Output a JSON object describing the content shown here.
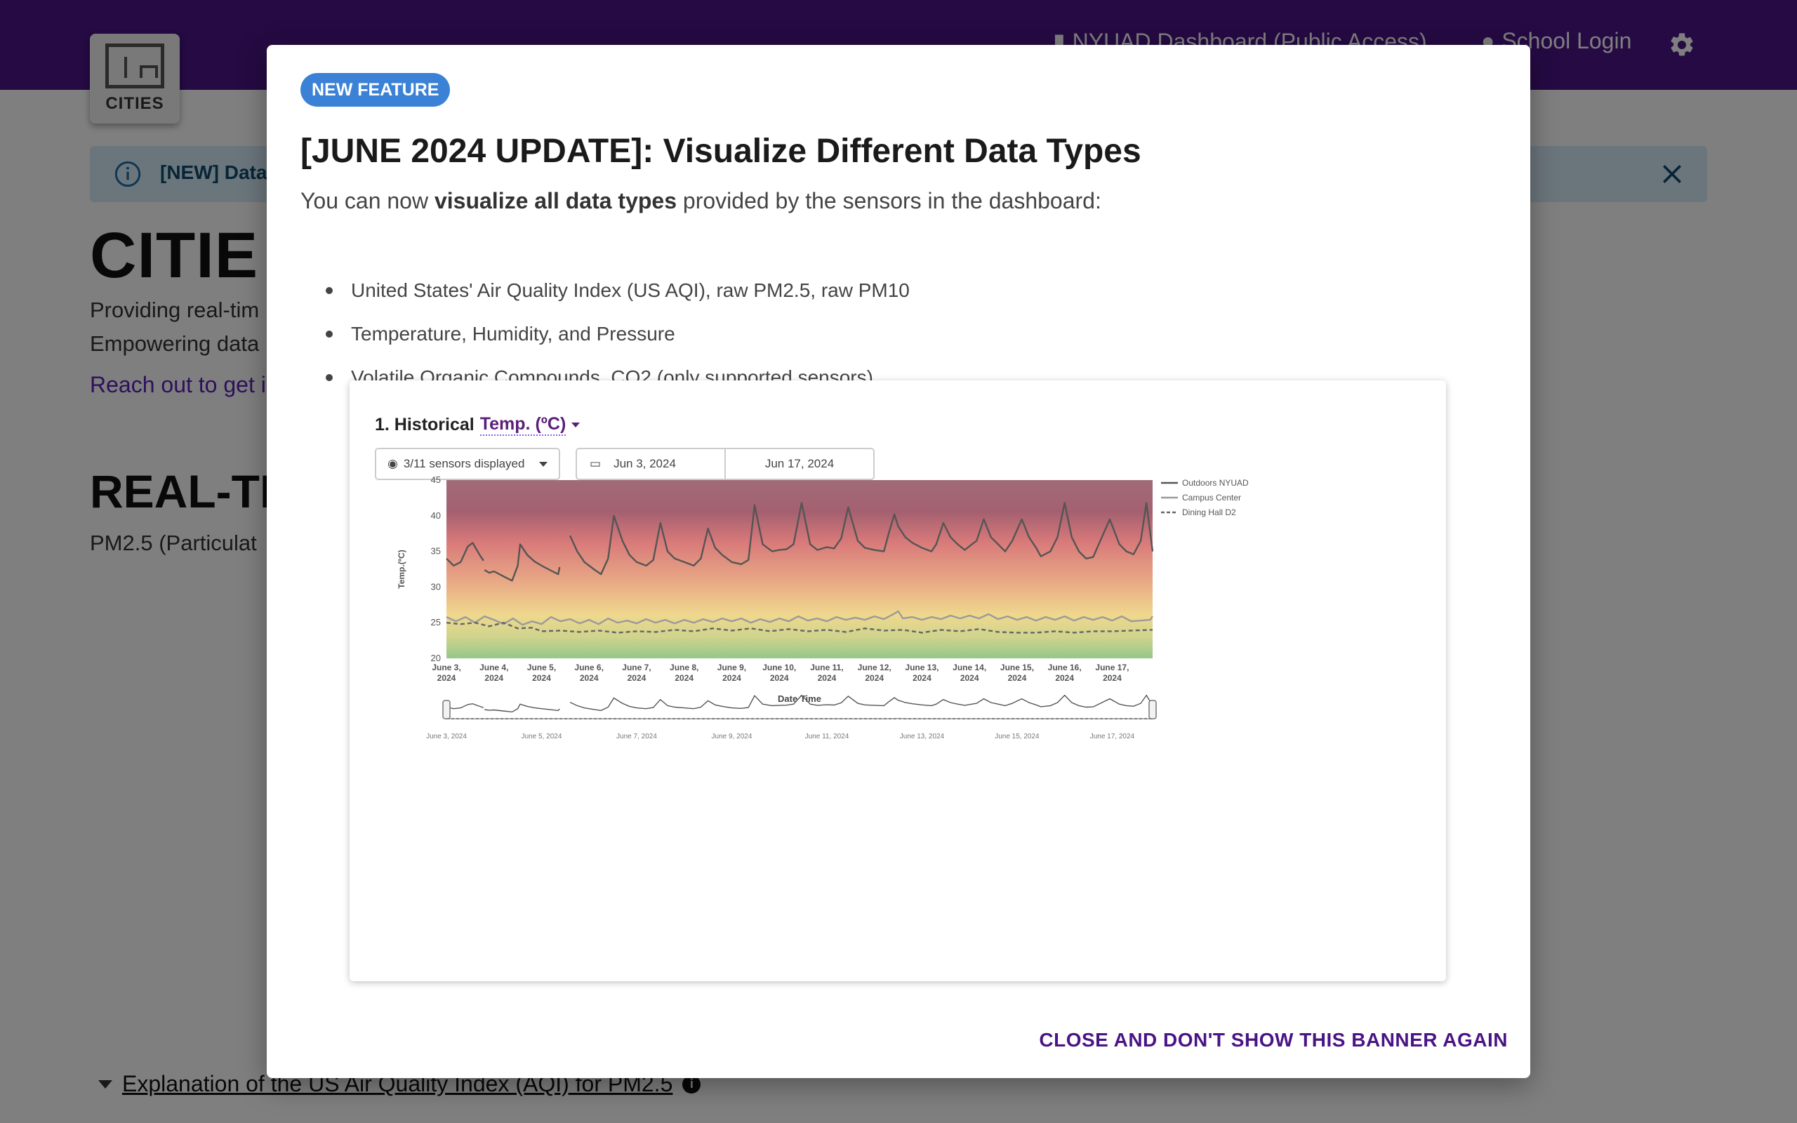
{
  "header": {
    "logo_text": "CITIES",
    "nav_dashboard": "NYUAD Dashboard (Public Access)",
    "nav_login": "School Login",
    "settings_icon": "gear-icon"
  },
  "alert": {
    "text": "[NEW] Data"
  },
  "background": {
    "title": "CITIE",
    "line1": "Providing real-tim",
    "line2": "Empowering data",
    "link": "Reach out to get i",
    "realtime_heading": "REAL-TI",
    "realtime_sub": "PM2.5 (Particulat",
    "explanation": "Explanation of the US Air Quality Index (AQI) for PM2.5"
  },
  "modal": {
    "badge": "NEW FEATURE",
    "title": "[JUNE 2024 UPDATE]: Visualize Different Data Types",
    "intro_pre": "You can now ",
    "intro_bold": "visualize all data types",
    "intro_post": " provided by the sensors in the dashboard:",
    "list": [
      "United States' Air Quality Index (US AQI), raw PM2.5, raw PM10",
      "Temperature, Humidity, and Pressure",
      "Volatile Organic Compounds, CO2 (only supported sensors)"
    ],
    "close_button": "CLOSE AND DON'T SHOW THIS BANNER AGAIN"
  },
  "screenshot": {
    "title_prefix": "1. Historical",
    "metric": "Temp. (ºC)",
    "sensors_select": "3/11 sensors displayed",
    "start_date": "Jun 3, 2024",
    "end_date": "Jun 17, 2024"
  },
  "chart_data": {
    "type": "line",
    "xlabel": "Date Time",
    "ylabel": "Temp.(ºC)",
    "ylim": [
      20,
      45
    ],
    "yticks": [
      20,
      25,
      30,
      35,
      40,
      45
    ],
    "xlim_days": [
      3,
      17.85
    ],
    "x_tick_labels": [
      [
        "June 3,",
        "2024"
      ],
      [
        "June 4,",
        "2024"
      ],
      [
        "June 5,",
        "2024"
      ],
      [
        "June 6,",
        "2024"
      ],
      [
        "June 7,",
        "2024"
      ],
      [
        "June 8,",
        "2024"
      ],
      [
        "June 9,",
        "2024"
      ],
      [
        "June 10,",
        "2024"
      ],
      [
        "June 11,",
        "2024"
      ],
      [
        "June 12,",
        "2024"
      ],
      [
        "June 13,",
        "2024"
      ],
      [
        "June 14,",
        "2024"
      ],
      [
        "June 15,",
        "2024"
      ],
      [
        "June 16,",
        "2024"
      ],
      [
        "June 17,",
        "2024"
      ]
    ],
    "navigator_labels": [
      "June 3, 2024",
      "June 5, 2024",
      "June 7, 2024",
      "June 9, 2024",
      "June 11, 2024",
      "June 13, 2024",
      "June 15, 2024",
      "June 17, 2024"
    ],
    "legend_position": "top-right",
    "grid": false,
    "series": [
      {
        "name": "Outdoors NYUAD",
        "style": "solid",
        "color": "#555555",
        "segments": [
          [
            [
              3.0,
              34.0
            ],
            [
              3.15,
              33.0
            ],
            [
              3.3,
              33.5
            ],
            [
              3.45,
              35.7
            ],
            [
              3.55,
              36.2
            ],
            [
              3.7,
              34.5
            ],
            [
              3.78,
              33.7
            ]
          ],
          [
            [
              3.8,
              32.4
            ],
            [
              3.9,
              32.0
            ],
            [
              4.0,
              32.2
            ],
            [
              4.2,
              31.5
            ],
            [
              4.38,
              30.9
            ],
            [
              4.5,
              33.0
            ],
            [
              4.55,
              36.0
            ],
            [
              4.7,
              34.5
            ],
            [
              4.85,
              33.6
            ],
            [
              5.0,
              33.0
            ],
            [
              5.2,
              32.3
            ],
            [
              5.35,
              31.8
            ],
            [
              5.38,
              32.8
            ]
          ],
          [
            [
              5.6,
              37.2
            ],
            [
              5.75,
              35.0
            ],
            [
              5.9,
              33.5
            ],
            [
              6.1,
              32.5
            ],
            [
              6.25,
              31.8
            ],
            [
              6.4,
              34.0
            ],
            [
              6.52,
              40.0
            ],
            [
              6.7,
              36.5
            ],
            [
              6.85,
              34.5
            ],
            [
              7.0,
              33.5
            ],
            [
              7.2,
              33.0
            ],
            [
              7.35,
              33.8
            ],
            [
              7.5,
              39.0
            ],
            [
              7.65,
              35.0
            ],
            [
              7.8,
              34.0
            ],
            [
              8.0,
              33.5
            ],
            [
              8.2,
              33.0
            ],
            [
              8.35,
              34.0
            ],
            [
              8.5,
              38.2
            ],
            [
              8.65,
              35.5
            ],
            [
              8.8,
              34.5
            ],
            [
              9.0,
              33.5
            ],
            [
              9.2,
              33.2
            ],
            [
              9.35,
              33.8
            ],
            [
              9.48,
              41.5
            ],
            [
              9.65,
              36.0
            ],
            [
              9.85,
              35.0
            ],
            [
              10.0,
              35.2
            ],
            [
              10.15,
              35.3
            ],
            [
              10.3,
              36.0
            ],
            [
              10.47,
              41.8
            ],
            [
              10.65,
              36.0
            ],
            [
              10.8,
              35.2
            ],
            [
              11.0,
              35.6
            ],
            [
              11.15,
              35.4
            ],
            [
              11.3,
              36.8
            ],
            [
              11.45,
              41.2
            ],
            [
              11.65,
              36.5
            ],
            [
              11.8,
              35.5
            ],
            [
              12.0,
              35.2
            ],
            [
              12.2,
              35.0
            ],
            [
              12.3,
              37.5
            ],
            [
              12.42,
              40.2
            ],
            [
              12.5,
              38.5
            ],
            [
              12.65,
              37.0
            ],
            [
              12.8,
              36.2
            ],
            [
              13.0,
              35.5
            ],
            [
              13.2,
              35.0
            ],
            [
              13.3,
              36.0
            ],
            [
              13.45,
              39.0
            ],
            [
              13.6,
              37.0
            ],
            [
              13.75,
              36.0
            ],
            [
              13.9,
              35.2
            ],
            [
              14.05,
              36.0
            ],
            [
              14.15,
              36.5
            ],
            [
              14.3,
              39.5
            ],
            [
              14.45,
              37.0
            ],
            [
              14.6,
              36.0
            ],
            [
              14.75,
              35.0
            ],
            [
              14.9,
              36.5
            ],
            [
              15.0,
              38.0
            ],
            [
              15.1,
              39.5
            ],
            [
              15.25,
              37.0
            ],
            [
              15.4,
              35.5
            ],
            [
              15.5,
              34.3
            ],
            [
              15.7,
              35.0
            ],
            [
              15.85,
              37.0
            ],
            [
              16.0,
              41.8
            ],
            [
              16.15,
              37.0
            ],
            [
              16.3,
              35.0
            ],
            [
              16.45,
              34.0
            ],
            [
              16.6,
              34.2
            ],
            [
              16.75,
              36.5
            ],
            [
              16.95,
              39.5
            ],
            [
              17.15,
              36.0
            ],
            [
              17.3,
              35.0
            ],
            [
              17.45,
              34.6
            ],
            [
              17.6,
              36.5
            ],
            [
              17.72,
              41.8
            ],
            [
              17.85,
              35.0
            ]
          ]
        ]
      },
      {
        "name": "Campus Center",
        "style": "solid",
        "color": "#9a9a9a",
        "segments": [
          [
            [
              3.0,
              25.8
            ],
            [
              3.2,
              25.2
            ],
            [
              3.4,
              25.8
            ],
            [
              3.6,
              25.0
            ],
            [
              3.8,
              25.9
            ],
            [
              4.0,
              25.4
            ],
            [
              4.2,
              24.8
            ],
            [
              4.4,
              25.6
            ],
            [
              4.6,
              24.7
            ],
            [
              4.8,
              25.2
            ],
            [
              5.0,
              24.8
            ],
            [
              5.2,
              25.8
            ],
            [
              5.4,
              25.2
            ],
            [
              5.6,
              25.5
            ],
            [
              5.8,
              24.9
            ],
            [
              6.0,
              25.4
            ],
            [
              6.2,
              24.8
            ],
            [
              6.4,
              25.6
            ],
            [
              6.6,
              25.0
            ],
            [
              6.8,
              25.3
            ],
            [
              7.0,
              24.9
            ],
            [
              7.2,
              25.5
            ],
            [
              7.4,
              25.0
            ],
            [
              7.6,
              25.4
            ],
            [
              7.8,
              24.9
            ],
            [
              8.0,
              25.4
            ],
            [
              8.2,
              25.0
            ],
            [
              8.4,
              25.5
            ],
            [
              8.6,
              25.1
            ],
            [
              8.8,
              25.6
            ],
            [
              9.0,
              25.2
            ],
            [
              9.2,
              25.6
            ],
            [
              9.4,
              25.0
            ],
            [
              9.6,
              25.5
            ],
            [
              9.8,
              25.1
            ],
            [
              10.0,
              25.6
            ],
            [
              10.2,
              25.2
            ],
            [
              10.4,
              25.9
            ],
            [
              10.6,
              25.3
            ],
            [
              10.8,
              25.6
            ],
            [
              11.0,
              25.2
            ],
            [
              11.2,
              25.8
            ],
            [
              11.4,
              25.4
            ],
            [
              11.6,
              25.7
            ],
            [
              11.8,
              25.4
            ],
            [
              12.0,
              25.9
            ],
            [
              12.2,
              25.5
            ],
            [
              12.4,
              26.2
            ],
            [
              12.5,
              26.6
            ],
            [
              12.6,
              25.6
            ],
            [
              12.8,
              25.8
            ],
            [
              13.0,
              25.4
            ],
            [
              13.2,
              25.8
            ],
            [
              13.4,
              25.5
            ],
            [
              13.6,
              26.0
            ],
            [
              13.8,
              25.6
            ],
            [
              14.0,
              26.0
            ],
            [
              14.2,
              25.6
            ],
            [
              14.4,
              26.2
            ],
            [
              14.6,
              25.5
            ],
            [
              14.8,
              25.9
            ],
            [
              15.0,
              25.4
            ],
            [
              15.2,
              25.8
            ],
            [
              15.4,
              25.3
            ],
            [
              15.6,
              25.8
            ],
            [
              15.8,
              25.4
            ],
            [
              16.0,
              25.9
            ],
            [
              16.2,
              25.3
            ],
            [
              16.4,
              25.8
            ],
            [
              16.6,
              25.4
            ],
            [
              16.8,
              25.8
            ],
            [
              17.0,
              25.3
            ],
            [
              17.2,
              25.9
            ],
            [
              17.4,
              25.2
            ],
            [
              17.6,
              25.3
            ],
            [
              17.8,
              25.4
            ],
            [
              17.85,
              25.9
            ]
          ]
        ]
      },
      {
        "name": "Dining Hall D2",
        "style": "dashed",
        "color": "#666666",
        "segments": [
          [
            [
              3.0,
              25.0
            ],
            [
              3.3,
              24.8
            ],
            [
              3.6,
              25.0
            ],
            [
              3.9,
              24.5
            ],
            [
              4.2,
              25.0
            ],
            [
              4.5,
              24.2
            ],
            [
              4.8,
              24.3
            ],
            [
              5.0,
              23.8
            ],
            [
              5.4,
              23.9
            ],
            [
              5.8,
              23.7
            ],
            [
              6.2,
              23.9
            ],
            [
              6.6,
              23.6
            ],
            [
              7.0,
              23.8
            ],
            [
              7.4,
              23.7
            ],
            [
              7.8,
              24.0
            ],
            [
              8.2,
              23.8
            ],
            [
              8.6,
              24.2
            ],
            [
              9.0,
              23.9
            ],
            [
              9.4,
              24.2
            ],
            [
              9.8,
              23.8
            ],
            [
              10.2,
              24.1
            ],
            [
              10.6,
              23.8
            ],
            [
              11.0,
              24.0
            ],
            [
              11.4,
              23.7
            ],
            [
              11.8,
              24.2
            ],
            [
              12.2,
              23.9
            ],
            [
              12.6,
              24.0
            ],
            [
              13.0,
              23.6
            ],
            [
              13.4,
              24.0
            ],
            [
              13.8,
              23.8
            ],
            [
              14.2,
              24.1
            ],
            [
              14.6,
              23.7
            ],
            [
              15.0,
              23.6
            ],
            [
              15.4,
              23.6
            ],
            [
              15.8,
              23.8
            ],
            [
              16.2,
              23.6
            ],
            [
              16.6,
              23.8
            ],
            [
              17.0,
              23.8
            ],
            [
              17.4,
              23.9
            ],
            [
              17.85,
              24.0
            ]
          ]
        ]
      }
    ]
  }
}
